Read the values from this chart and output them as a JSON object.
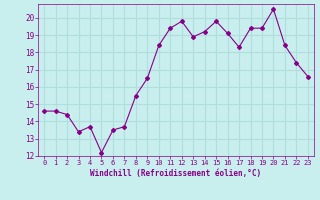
{
  "x": [
    0,
    1,
    2,
    3,
    4,
    5,
    6,
    7,
    8,
    9,
    10,
    11,
    12,
    13,
    14,
    15,
    16,
    17,
    18,
    19,
    20,
    21,
    22,
    23
  ],
  "y": [
    14.6,
    14.6,
    14.4,
    13.4,
    13.7,
    12.2,
    13.5,
    13.7,
    15.5,
    16.5,
    18.4,
    19.4,
    19.8,
    18.9,
    19.2,
    19.8,
    19.1,
    18.3,
    19.4,
    19.4,
    20.5,
    18.4,
    17.4,
    16.6
  ],
  "line_color": "#880088",
  "marker": "D",
  "marker_size": 2.0,
  "bg_color": "#c8eeed",
  "grid_color": "#b0dede",
  "xlabel": "Windchill (Refroidissement éolien,°C)",
  "xlabel_color": "#880088",
  "tick_color": "#880088",
  "ylim": [
    12,
    20.8
  ],
  "xlim": [
    -0.5,
    23.5
  ],
  "yticks": [
    12,
    13,
    14,
    15,
    16,
    17,
    18,
    19,
    20
  ],
  "xticks": [
    0,
    1,
    2,
    3,
    4,
    5,
    6,
    7,
    8,
    9,
    10,
    11,
    12,
    13,
    14,
    15,
    16,
    17,
    18,
    19,
    20,
    21,
    22,
    23
  ],
  "xtick_labels": [
    "0",
    "1",
    "2",
    "3",
    "4",
    "5",
    "6",
    "7",
    "8",
    "9",
    "10",
    "11",
    "12",
    "13",
    "14",
    "15",
    "16",
    "17",
    "18",
    "19",
    "20",
    "21",
    "22",
    "23"
  ]
}
